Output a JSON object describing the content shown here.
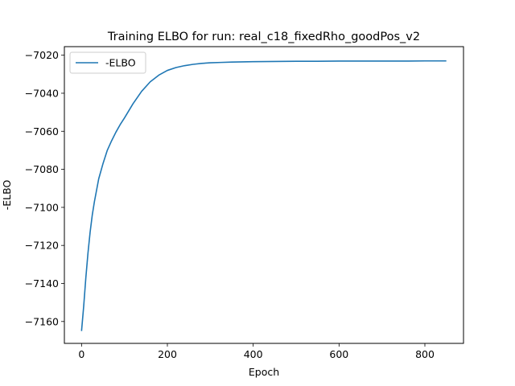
{
  "chart_data": {
    "type": "line",
    "title": "Training ELBO for run: real_c18_fixedRho_goodPos_v2",
    "xlabel": "Epoch",
    "ylabel": "-ELBO",
    "xlim": [
      -40,
      890
    ],
    "ylim": [
      -7171.5,
      -7015.5
    ],
    "x_ticks": [
      0,
      200,
      400,
      600,
      800
    ],
    "y_ticks": [
      -7160,
      -7140,
      -7120,
      -7100,
      -7080,
      -7060,
      -7040,
      -7020
    ],
    "grid": false,
    "legend": {
      "location": "upper left",
      "entries": [
        "-ELBO"
      ]
    },
    "series": [
      {
        "name": "-ELBO",
        "color": "#1f77b4",
        "x": [
          0,
          5,
          10,
          15,
          20,
          25,
          30,
          40,
          50,
          60,
          70,
          80,
          90,
          100,
          120,
          140,
          160,
          180,
          200,
          220,
          240,
          260,
          280,
          300,
          325,
          350,
          400,
          450,
          500,
          550,
          600,
          650,
          700,
          750,
          800,
          850
        ],
        "y": [
          -7165,
          -7152,
          -7137,
          -7124,
          -7113,
          -7104,
          -7097,
          -7085,
          -7077,
          -7070,
          -7065,
          -7060.5,
          -7056.5,
          -7053,
          -7045.5,
          -7039,
          -7034,
          -7030.5,
          -7028,
          -7026.5,
          -7025.5,
          -7024.8,
          -7024.3,
          -7024,
          -7023.8,
          -7023.6,
          -7023.4,
          -7023.3,
          -7023.2,
          -7023.2,
          -7023.1,
          -7023.1,
          -7023.1,
          -7023.1,
          -7023,
          -7023
        ]
      }
    ]
  }
}
